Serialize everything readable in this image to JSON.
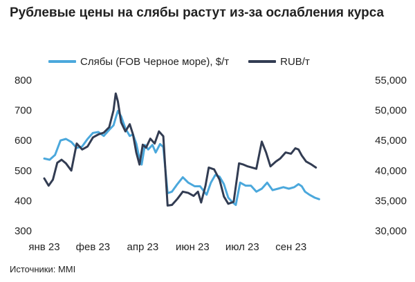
{
  "title": "Рублевые цены на слябы растут из-за ослабления курса",
  "source": "Источники: MMI",
  "chart_data": {
    "type": "line",
    "title": "Рублевые цены на слябы растут из-за ослабления курса",
    "x_tick_labels": [
      "янв 23",
      "фев 23",
      "апр 23",
      "июн 23",
      "июл 23",
      "сен 23"
    ],
    "x_range_days": [
      0,
      287
    ],
    "x_tick_days": [
      0,
      45,
      91,
      137,
      183,
      228
    ],
    "left_axis": {
      "ylim": [
        300,
        800
      ],
      "ticks": [
        "800",
        "700",
        "600",
        "500",
        "400",
        "300"
      ],
      "tick_values": [
        800,
        700,
        600,
        500,
        400,
        300
      ]
    },
    "right_axis": {
      "ylim": [
        30000,
        55000
      ],
      "ticks": [
        "55,000",
        "50,000",
        "45,000",
        "40,000",
        "35,000",
        "30,000"
      ],
      "tick_values": [
        55000,
        50000,
        45000,
        40000,
        35000,
        30000
      ]
    },
    "grid": false,
    "legend_position": "top",
    "series": [
      {
        "name": "Слябы (FOB Черное море), $/т",
        "axis": "left",
        "color": "#4ba8dc",
        "points": [
          [
            0,
            540
          ],
          [
            5,
            536
          ],
          [
            10,
            552
          ],
          [
            15,
            600
          ],
          [
            20,
            605
          ],
          [
            25,
            595
          ],
          [
            30,
            575
          ],
          [
            35,
            580
          ],
          [
            40,
            605
          ],
          [
            45,
            625
          ],
          [
            50,
            628
          ],
          [
            55,
            615
          ],
          [
            60,
            635
          ],
          [
            64,
            650
          ],
          [
            66,
            675
          ],
          [
            68,
            698
          ],
          [
            71,
            680
          ],
          [
            75,
            640
          ],
          [
            79,
            615
          ],
          [
            82,
            620
          ],
          [
            85,
            590
          ],
          [
            88,
            540
          ],
          [
            90,
            520
          ],
          [
            93,
            585
          ],
          [
            96,
            570
          ],
          [
            100,
            585
          ],
          [
            103,
            560
          ],
          [
            107,
            588
          ],
          [
            110,
            578
          ],
          [
            114,
            425
          ],
          [
            118,
            430
          ],
          [
            123,
            455
          ],
          [
            128,
            478
          ],
          [
            133,
            460
          ],
          [
            139,
            448
          ],
          [
            144,
            448
          ],
          [
            150,
            420
          ],
          [
            154,
            460
          ],
          [
            158,
            485
          ],
          [
            162,
            480
          ],
          [
            166,
            455
          ],
          [
            170,
            410
          ],
          [
            174,
            395
          ],
          [
            177,
            386
          ],
          [
            181,
            460
          ],
          [
            186,
            450
          ],
          [
            191,
            450
          ],
          [
            196,
            430
          ],
          [
            201,
            440
          ],
          [
            206,
            460
          ],
          [
            211,
            435
          ],
          [
            216,
            440
          ],
          [
            221,
            445
          ],
          [
            226,
            440
          ],
          [
            231,
            445
          ],
          [
            235,
            455
          ],
          [
            238,
            448
          ],
          [
            241,
            430
          ],
          [
            245,
            420
          ],
          [
            250,
            410
          ],
          [
            254,
            405
          ]
        ]
      },
      {
        "name": "RUB/т",
        "axis": "right",
        "color": "#323c52",
        "points": [
          [
            0,
            38700
          ],
          [
            4,
            37500
          ],
          [
            8,
            38500
          ],
          [
            12,
            41300
          ],
          [
            16,
            41800
          ],
          [
            20,
            41200
          ],
          [
            25,
            40000
          ],
          [
            30,
            44500
          ],
          [
            35,
            43500
          ],
          [
            40,
            44000
          ],
          [
            45,
            45500
          ],
          [
            50,
            46000
          ],
          [
            55,
            46300
          ],
          [
            60,
            47200
          ],
          [
            64,
            50000
          ],
          [
            66,
            52800
          ],
          [
            68,
            51500
          ],
          [
            71,
            48000
          ],
          [
            75,
            46500
          ],
          [
            79,
            47700
          ],
          [
            82,
            46000
          ],
          [
            85,
            43000
          ],
          [
            88,
            41000
          ],
          [
            91,
            44300
          ],
          [
            94,
            43800
          ],
          [
            98,
            45300
          ],
          [
            102,
            44500
          ],
          [
            106,
            46500
          ],
          [
            110,
            45700
          ],
          [
            114,
            34200
          ],
          [
            118,
            34300
          ],
          [
            123,
            35300
          ],
          [
            128,
            36500
          ],
          [
            133,
            36300
          ],
          [
            138,
            35800
          ],
          [
            142,
            36500
          ],
          [
            145,
            34700
          ],
          [
            149,
            37500
          ],
          [
            152,
            40500
          ],
          [
            157,
            40200
          ],
          [
            162,
            38500
          ],
          [
            166,
            35700
          ],
          [
            170,
            34500
          ],
          [
            175,
            34800
          ],
          [
            180,
            41200
          ],
          [
            184,
            41000
          ],
          [
            188,
            40700
          ],
          [
            192,
            40500
          ],
          [
            196,
            40300
          ],
          [
            201,
            44800
          ],
          [
            205,
            43000
          ],
          [
            209,
            40700
          ],
          [
            214,
            41500
          ],
          [
            218,
            42000
          ],
          [
            223,
            43000
          ],
          [
            228,
            42800
          ],
          [
            232,
            43700
          ],
          [
            235,
            43500
          ],
          [
            238,
            42500
          ],
          [
            242,
            41500
          ],
          [
            247,
            41000
          ],
          [
            251,
            40500
          ]
        ]
      }
    ]
  }
}
